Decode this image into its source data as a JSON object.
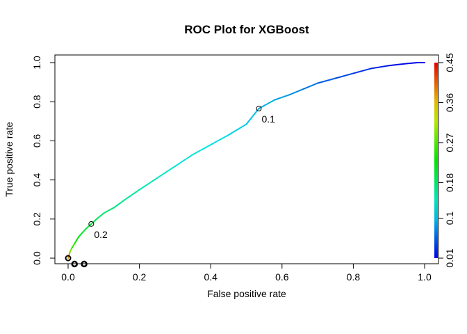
{
  "chart_data": {
    "type": "line",
    "title": "ROC Plot for XGBoost",
    "xlabel": "False positive rate",
    "ylabel": "True positive rate",
    "xlim": [
      0,
      1
    ],
    "ylim": [
      0,
      1
    ],
    "x_ticks": [
      "0.0",
      "0.2",
      "0.4",
      "0.6",
      "0.8",
      "1.0"
    ],
    "y_ticks": [
      "0.0",
      "0.2",
      "0.4",
      "0.6",
      "0.8",
      "1.0"
    ],
    "grid": false,
    "legend": "none",
    "series": [
      {
        "x": [
          0,
          0.005,
          0.01,
          0.02,
          0.03,
          0.04,
          0.05,
          0.065,
          0.08,
          0.1,
          0.13,
          0.16,
          0.2,
          0.25,
          0.3,
          0.35,
          0.4,
          0.45,
          0.5,
          0.535,
          0.58,
          0.62,
          0.66,
          0.7,
          0.75,
          0.8,
          0.85,
          0.9,
          0.95,
          0.98,
          1.0
        ],
        "y": [
          0,
          0.03,
          0.05,
          0.08,
          0.11,
          0.13,
          0.15,
          0.175,
          0.2,
          0.23,
          0.26,
          0.3,
          0.35,
          0.41,
          0.47,
          0.53,
          0.58,
          0.63,
          0.685,
          0.765,
          0.81,
          0.835,
          0.865,
          0.895,
          0.92,
          0.945,
          0.97,
          0.985,
          0.995,
          1.0,
          1.0
        ],
        "cutoff": [
          0.45,
          0.3,
          0.27,
          0.24,
          0.22,
          0.21,
          0.205,
          0.2,
          0.19,
          0.18,
          0.17,
          0.16,
          0.15,
          0.14,
          0.13,
          0.125,
          0.12,
          0.115,
          0.105,
          0.1,
          0.09,
          0.08,
          0.07,
          0.06,
          0.05,
          0.04,
          0.03,
          0.02,
          0.01,
          0.005,
          0.0
        ]
      }
    ],
    "cutoff_labels": [
      {
        "x": 0.535,
        "y": 0.765,
        "label": "0.1"
      },
      {
        "x": 0.065,
        "y": 0.175,
        "label": "0.2"
      }
    ],
    "extra_points": [
      {
        "x": 0.0,
        "y": 0.0
      },
      {
        "x": 0.018,
        "y": -0.03
      },
      {
        "x": 0.045,
        "y": -0.03
      }
    ],
    "colorbar": {
      "range": [
        0.01,
        0.45
      ],
      "tick_labels": [
        "0.01",
        "0.1",
        "0.18",
        "0.27",
        "0.36",
        "0.45"
      ],
      "tick_values": [
        0.01,
        0.1,
        0.18,
        0.27,
        0.36,
        0.45
      ]
    }
  }
}
